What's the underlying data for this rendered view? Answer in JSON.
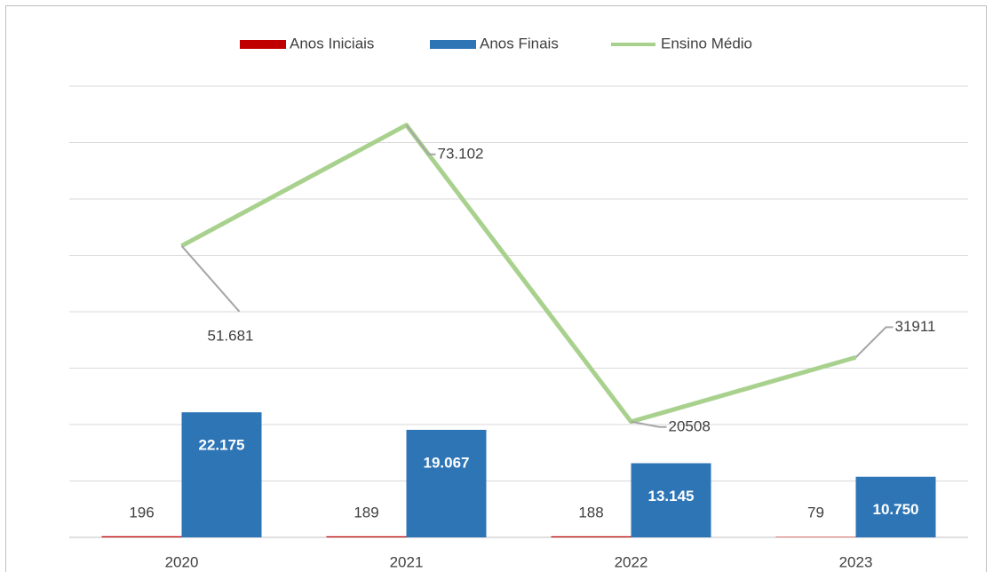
{
  "chart_data": {
    "type": "bar",
    "categories": [
      "2020",
      "2021",
      "2022",
      "2023"
    ],
    "series": [
      {
        "name": "Anos Iniciais",
        "type": "bar",
        "color": "#c00000",
        "values": [
          196,
          189,
          188,
          79
        ]
      },
      {
        "name": "Anos Finais",
        "type": "bar",
        "color": "#2e75b6",
        "values": [
          22175,
          19067,
          13145,
          10750
        ],
        "value_labels": [
          "22.175",
          "19.067",
          "13.145",
          "10.750"
        ]
      },
      {
        "name": "Ensino Médio",
        "type": "line",
        "color": "#a9d18e",
        "values": [
          51681,
          73102,
          20508,
          31911
        ],
        "value_labels": [
          "51.681",
          "73.102",
          "20508",
          "31911"
        ]
      }
    ],
    "ylim": [
      0,
      80000
    ],
    "yticks": [
      0,
      10000,
      20000,
      30000,
      40000,
      50000,
      60000,
      70000,
      80000
    ],
    "grid": true,
    "legend": "top"
  }
}
